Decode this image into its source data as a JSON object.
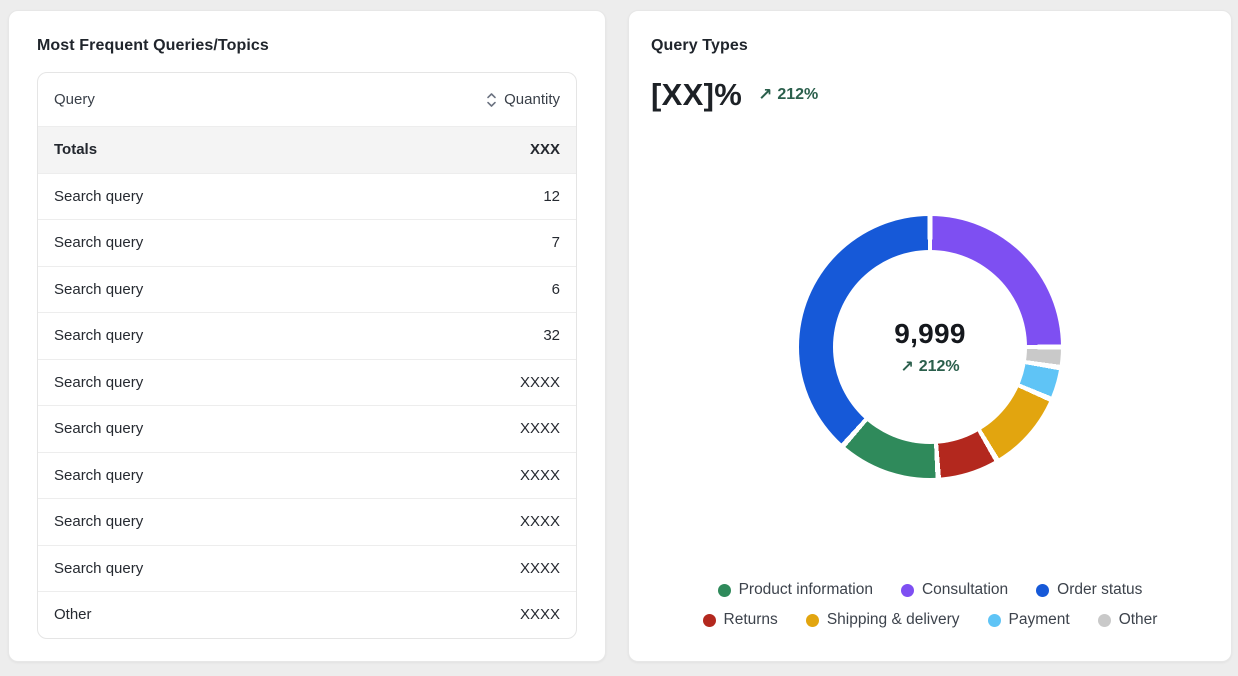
{
  "colors": {
    "page_bg": "#ededed",
    "card_bg": "#ffffff",
    "trend_green": "#2b5f4c",
    "totals_row_bg": "#f4f4f4"
  },
  "left_card": {
    "title": "Most Frequent Queries/Topics",
    "table": {
      "columns": [
        "Query",
        "Quantity"
      ],
      "sort_icon": "sort-up-down-chevrons",
      "totals_row": {
        "label": "Totals",
        "value": "XXX"
      },
      "rows": [
        {
          "label": "Search query",
          "value": "12"
        },
        {
          "label": "Search query",
          "value": "7"
        },
        {
          "label": "Search query",
          "value": "6"
        },
        {
          "label": "Search query",
          "value": "32"
        },
        {
          "label": "Search query",
          "value": "XXXX"
        },
        {
          "label": "Search query",
          "value": "XXXX"
        },
        {
          "label": "Search query",
          "value": "XXXX"
        },
        {
          "label": "Search query",
          "value": "XXXX"
        },
        {
          "label": "Search query",
          "value": "XXXX"
        },
        {
          "label": "Other",
          "value": "XXXX"
        }
      ]
    }
  },
  "right_card": {
    "title": "Query Types",
    "headline_value": "[XX]%",
    "trend": {
      "arrow": "↗",
      "value": "212%"
    },
    "center": {
      "value": "9,999",
      "trend_arrow": "↗",
      "trend_value": "212%"
    }
  },
  "chart_data": {
    "type": "pie",
    "subtype": "donut",
    "title": "Query Types",
    "center_label": "9,999",
    "center_trend": "↗ 212%",
    "legend_position": "bottom",
    "segments_clockwise_from_top": [
      {
        "label": "Consultation",
        "value": 25,
        "color": "#7e4ff2"
      },
      {
        "label": "Other",
        "value": 2.5,
        "color": "#c9c9c9"
      },
      {
        "label": "Payment",
        "value": 4,
        "color": "#5fc4f6"
      },
      {
        "label": "Shipping & delivery",
        "value": 10,
        "color": "#e2a50f"
      },
      {
        "label": "Returns",
        "value": 7.5,
        "color": "#b3281e"
      },
      {
        "label": "Product information",
        "value": 12.5,
        "color": "#2f8a5b"
      },
      {
        "label": "Order status",
        "value": 38.5,
        "color": "#1659d8"
      }
    ],
    "legend_rows": [
      [
        "Product information",
        "Consultation",
        "Order status"
      ],
      [
        "Returns",
        "Shipping & delivery",
        "Payment",
        "Other"
      ]
    ]
  }
}
